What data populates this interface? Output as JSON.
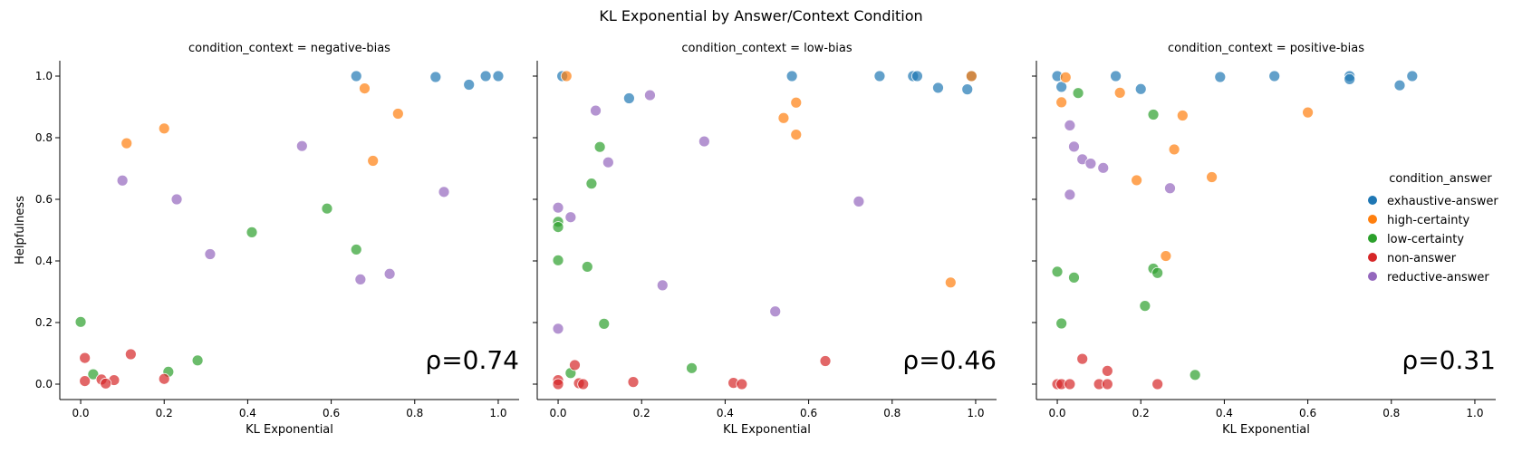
{
  "chart_data": {
    "type": "scatter",
    "title": "KL Exponential by Answer/Context Condition",
    "xlabel": "KL Exponential",
    "ylabel": "Helpfulness",
    "xlim": [
      -0.05,
      1.05
    ],
    "ylim": [
      -0.05,
      1.05
    ],
    "x_ticks": [
      "0.0",
      "0.2",
      "0.4",
      "0.6",
      "0.8",
      "1.0"
    ],
    "y_ticks": [
      "0.0",
      "0.2",
      "0.4",
      "0.6",
      "0.8",
      "1.0"
    ],
    "grid": false,
    "legend": {
      "title": "condition_answer",
      "placement": "right",
      "entries": [
        {
          "name": "exhaustive-answer",
          "color": "#1f77b4"
        },
        {
          "name": "high-certainty",
          "color": "#ff7f0e"
        },
        {
          "name": "low-certainty",
          "color": "#2ca02c"
        },
        {
          "name": "non-answer",
          "color": "#d62728"
        },
        {
          "name": "reductive-answer",
          "color": "#9467bd"
        }
      ]
    },
    "panels": [
      {
        "title": "condition_context = negative-bias",
        "annotation": "ρ=0.74",
        "series": [
          {
            "name": "exhaustive-answer",
            "points": [
              [
                0.66,
                1.0
              ],
              [
                0.85,
                0.997
              ],
              [
                0.93,
                0.972
              ],
              [
                0.97,
                1.0
              ],
              [
                1.0,
                1.0
              ]
            ]
          },
          {
            "name": "high-certainty",
            "points": [
              [
                0.68,
                0.96
              ],
              [
                0.76,
                0.878
              ],
              [
                0.2,
                0.83
              ],
              [
                0.11,
                0.782
              ],
              [
                0.7,
                0.725
              ]
            ]
          },
          {
            "name": "low-certainty",
            "points": [
              [
                0.59,
                0.57
              ],
              [
                0.41,
                0.493
              ],
              [
                0.66,
                0.437
              ],
              [
                0.0,
                0.202
              ],
              [
                0.28,
                0.077
              ],
              [
                0.21,
                0.04
              ],
              [
                0.03,
                0.032
              ]
            ]
          },
          {
            "name": "non-answer",
            "points": [
              [
                0.01,
                0.085
              ],
              [
                0.12,
                0.097
              ],
              [
                0.01,
                0.01
              ],
              [
                0.05,
                0.015
              ],
              [
                0.08,
                0.013
              ],
              [
                0.06,
                0.002
              ],
              [
                0.2,
                0.017
              ]
            ]
          },
          {
            "name": "reductive-answer",
            "points": [
              [
                0.53,
                0.773
              ],
              [
                0.1,
                0.661
              ],
              [
                0.23,
                0.6
              ],
              [
                0.87,
                0.624
              ],
              [
                0.31,
                0.422
              ],
              [
                0.67,
                0.34
              ],
              [
                0.74,
                0.358
              ]
            ]
          }
        ]
      },
      {
        "title": "condition_context = low-bias",
        "annotation": "ρ=0.46",
        "series": [
          {
            "name": "exhaustive-answer",
            "points": [
              [
                0.01,
                1.0
              ],
              [
                0.56,
                1.0
              ],
              [
                0.77,
                1.0
              ],
              [
                0.85,
                1.0
              ],
              [
                0.86,
                1.0
              ],
              [
                0.99,
                1.0
              ],
              [
                0.91,
                0.962
              ],
              [
                0.98,
                0.957
              ],
              [
                0.17,
                0.928
              ]
            ]
          },
          {
            "name": "high-certainty",
            "points": [
              [
                0.02,
                1.0
              ],
              [
                0.99,
                1.0
              ],
              [
                0.57,
                0.914
              ],
              [
                0.54,
                0.864
              ],
              [
                0.57,
                0.81
              ],
              [
                0.94,
                0.33
              ]
            ]
          },
          {
            "name": "low-certainty",
            "points": [
              [
                0.1,
                0.77
              ],
              [
                0.08,
                0.651
              ],
              [
                0.0,
                0.527
              ],
              [
                0.0,
                0.51
              ],
              [
                0.0,
                0.402
              ],
              [
                0.07,
                0.381
              ],
              [
                0.11,
                0.196
              ],
              [
                0.32,
                0.052
              ],
              [
                0.03,
                0.036
              ]
            ]
          },
          {
            "name": "non-answer",
            "points": [
              [
                0.64,
                0.075
              ],
              [
                0.04,
                0.062
              ],
              [
                0.0,
                0.013
              ],
              [
                0.0,
                0.0
              ],
              [
                0.05,
                0.003
              ],
              [
                0.06,
                0.0
              ],
              [
                0.18,
                0.007
              ],
              [
                0.42,
                0.004
              ],
              [
                0.44,
                0.0
              ]
            ]
          },
          {
            "name": "reductive-answer",
            "points": [
              [
                0.22,
                0.938
              ],
              [
                0.09,
                0.888
              ],
              [
                0.35,
                0.788
              ],
              [
                0.12,
                0.72
              ],
              [
                0.72,
                0.593
              ],
              [
                0.0,
                0.573
              ],
              [
                0.03,
                0.542
              ],
              [
                0.25,
                0.321
              ],
              [
                0.52,
                0.236
              ],
              [
                0.0,
                0.18
              ]
            ]
          }
        ]
      },
      {
        "title": "condition_context = positive-bias",
        "annotation": "ρ=0.31",
        "series": [
          {
            "name": "exhaustive-answer",
            "points": [
              [
                0.0,
                1.0
              ],
              [
                0.14,
                1.0
              ],
              [
                0.39,
                0.997
              ],
              [
                0.52,
                1.0
              ],
              [
                0.7,
                1.0
              ],
              [
                0.7,
                0.99
              ],
              [
                0.85,
                1.0
              ],
              [
                0.01,
                0.965
              ],
              [
                0.2,
                0.958
              ],
              [
                0.82,
                0.97
              ]
            ]
          },
          {
            "name": "high-certainty",
            "points": [
              [
                0.02,
                0.996
              ],
              [
                0.15,
                0.946
              ],
              [
                0.01,
                0.915
              ],
              [
                0.6,
                0.882
              ],
              [
                0.3,
                0.872
              ],
              [
                0.28,
                0.762
              ],
              [
                0.37,
                0.672
              ],
              [
                0.19,
                0.662
              ],
              [
                0.26,
                0.416
              ]
            ]
          },
          {
            "name": "low-certainty",
            "points": [
              [
                0.05,
                0.945
              ],
              [
                0.23,
                0.875
              ],
              [
                0.0,
                0.365
              ],
              [
                0.04,
                0.346
              ],
              [
                0.23,
                0.375
              ],
              [
                0.24,
                0.361
              ],
              [
                0.21,
                0.254
              ],
              [
                0.01,
                0.197
              ],
              [
                0.33,
                0.03
              ]
            ]
          },
          {
            "name": "non-answer",
            "points": [
              [
                0.06,
                0.082
              ],
              [
                0.12,
                0.043
              ],
              [
                0.0,
                0.0
              ],
              [
                0.01,
                0.0
              ],
              [
                0.03,
                0.0
              ],
              [
                0.1,
                0.0
              ],
              [
                0.12,
                0.0
              ],
              [
                0.24,
                0.0
              ]
            ]
          },
          {
            "name": "reductive-answer",
            "points": [
              [
                0.03,
                0.84
              ],
              [
                0.04,
                0.771
              ],
              [
                0.06,
                0.73
              ],
              [
                0.08,
                0.716
              ],
              [
                0.11,
                0.702
              ],
              [
                0.27,
                0.636
              ],
              [
                0.03,
                0.615
              ]
            ]
          }
        ]
      }
    ]
  }
}
